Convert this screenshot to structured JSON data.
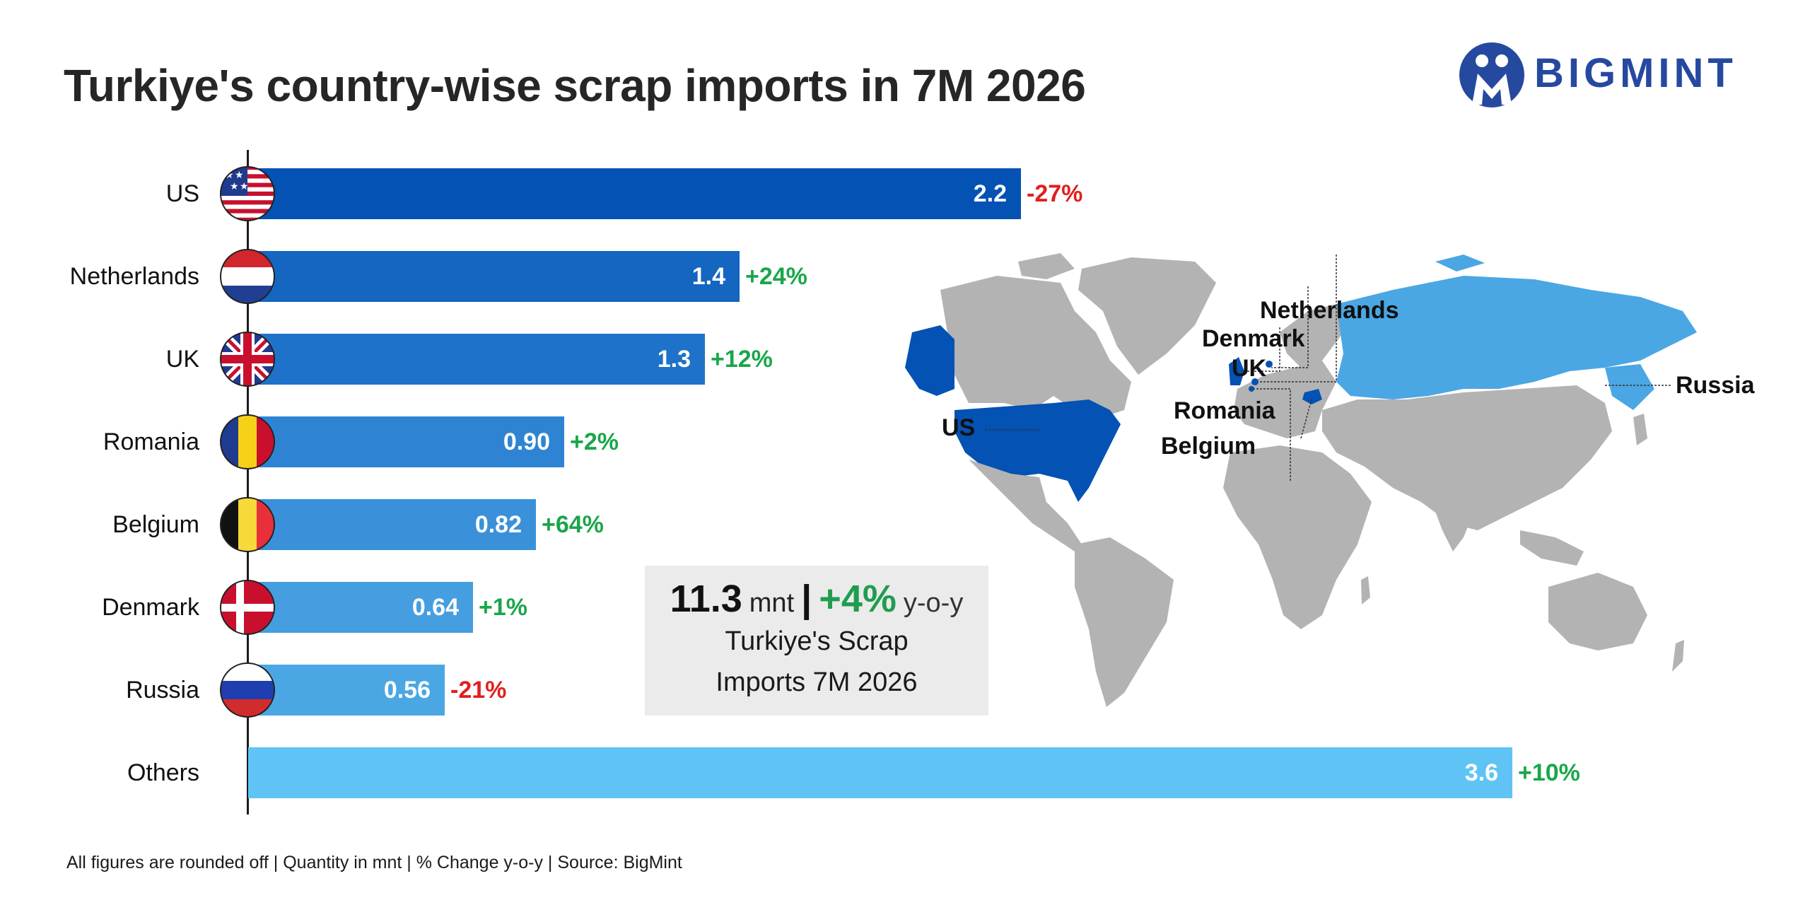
{
  "title": "Turkiye's country-wise scrap imports in 7M 2026",
  "logo": {
    "text": "BIGMINT",
    "brand_color": "#2649a0"
  },
  "chart_data": {
    "type": "bar",
    "orientation": "horizontal",
    "title": "Turkiye's country-wise scrap imports in 7M 2026",
    "categories": [
      "US",
      "Netherlands",
      "UK",
      "Romania",
      "Belgium",
      "Denmark",
      "Russia",
      "Others"
    ],
    "value_labels": [
      "2.2",
      "1.4",
      "1.3",
      "0.90",
      "0.82",
      "0.64",
      "0.56",
      "3.6"
    ],
    "values": [
      2.2,
      1.4,
      1.3,
      0.9,
      0.82,
      0.64,
      0.56,
      3.6
    ],
    "change_labels": [
      "-27%",
      "+24%",
      "+12%",
      "+2%",
      "+64%",
      "+1%",
      "-21%",
      "+10%"
    ],
    "bar_colors": [
      "#0452b3",
      "#1466c0",
      "#1f72c9",
      "#2e84d3",
      "#3a91da",
      "#449ee0",
      "#4aa7e4",
      "#5fc4f5"
    ],
    "xlim": [
      0,
      3.6
    ],
    "grid": false,
    "legend": "none"
  },
  "colors": {
    "positive": "#1aa64a",
    "negative": "#e0201f"
  },
  "flags": [
    "us-flag-icon",
    "netherlands-flag-icon",
    "uk-flag-icon",
    "romania-flag-icon",
    "belgium-flag-icon",
    "denmark-flag-icon",
    "russia-flag-icon"
  ],
  "summary": {
    "total": "11.3",
    "unit": "mnt",
    "separator": "|",
    "change": "+4%",
    "change_suffix": "y-o-y",
    "caption_line1": "Turkiye's Scrap",
    "caption_line2": "Imports 7M 2026"
  },
  "map": {
    "highlight_dark": "#0452b3",
    "highlight_light": "#4aa7e4",
    "land_color": "#b3b3b3",
    "labels": [
      "US",
      "Netherlands",
      "Denmark",
      "UK",
      "Romania",
      "Belgium",
      "Russia"
    ]
  },
  "footer": "All figures are rounded off  |  Quantity in mnt  |  % Change y-o-y  |  Source: BigMint"
}
